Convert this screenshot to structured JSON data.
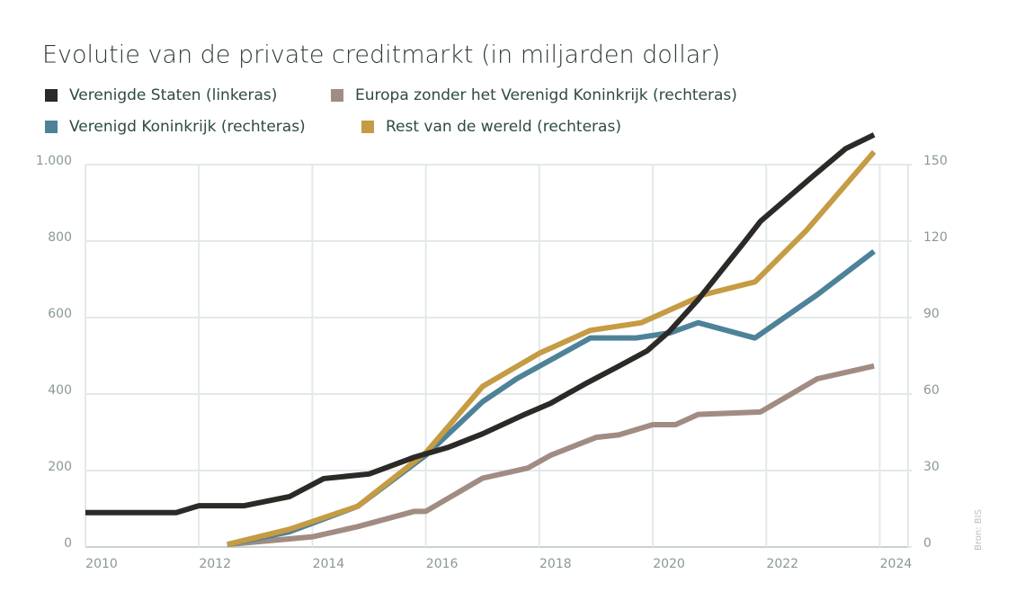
{
  "chart_data": {
    "type": "line",
    "title": "Evolutie van de private creditmarkt (in miljarden dollar)",
    "source": "Bron: BIS",
    "xlim": [
      2010,
      2024.5
    ],
    "xticks": [
      2010,
      2012,
      2014,
      2016,
      2018,
      2020,
      2022,
      2024
    ],
    "ylim": [
      0,
      1000
    ],
    "yticks": [
      0,
      200,
      400,
      600,
      800,
      {
        "value": 1000,
        "label": "1.000"
      }
    ],
    "y2lim": [
      0,
      150
    ],
    "y2ticks": [
      0,
      30,
      60,
      90,
      120,
      150
    ],
    "grid": true,
    "series": [
      {
        "name": "Verenigde Staten (linkeras)",
        "color": "#2b2a27",
        "x": [
          2010,
          2011.6,
          2012,
          2012.8,
          2013.6,
          2014.2,
          2015,
          2015.8,
          2016.4,
          2017,
          2017.7,
          2018.2,
          2018.8,
          2019.4,
          2019.9,
          2020.3,
          2020.8,
          2021.6,
          2021.9,
          2022.8,
          2023.4,
          2023.9
        ],
        "values": [
          90,
          90,
          108,
          108,
          132,
          179,
          191,
          235,
          261,
          296,
          344,
          376,
          426,
          473,
          513,
          565,
          647,
          795,
          852,
          967,
          1042,
          1078
        ]
      },
      {
        "name": "Europa zonder het Verenigd Koninkrijk (rechteras)",
        "color": "#a08c82",
        "axis": "y2",
        "x": [
          2012.5,
          2014,
          2014.8,
          2015.8,
          2016,
          2017,
          2017.8,
          2018.2,
          2019,
          2019.4,
          2020,
          2020.4,
          2020.8,
          2021.9,
          2022.9,
          2023.9
        ],
        "values": [
          1,
          4,
          8,
          14,
          14,
          27,
          31,
          36,
          43,
          44,
          48,
          48,
          52,
          53,
          66,
          71
        ]
      },
      {
        "name": "Verenigd Koninkrijk (rechteras)",
        "color": "#4e8299",
        "axis": "y2",
        "x": [
          2012.5,
          2013.6,
          2014.8,
          2016,
          2017,
          2017.6,
          2018.9,
          2019.7,
          2020.3,
          2020.8,
          2021.8,
          2022.9,
          2023.9
        ],
        "values": [
          1,
          6,
          16,
          36,
          57,
          66,
          82,
          82,
          84,
          88,
          82,
          99,
          116
        ]
      },
      {
        "name": "Rest van de wereld (rechteras)",
        "color": "#c59b43",
        "axis": "y2",
        "x": [
          2012.5,
          2013.6,
          2014.8,
          2016,
          2017,
          2018,
          2018.9,
          2019.8,
          2020.9,
          2021.8,
          2022.7,
          2023.9
        ],
        "values": [
          1,
          7,
          16,
          37,
          63,
          76,
          85,
          88,
          99,
          104,
          124,
          155
        ]
      }
    ]
  }
}
